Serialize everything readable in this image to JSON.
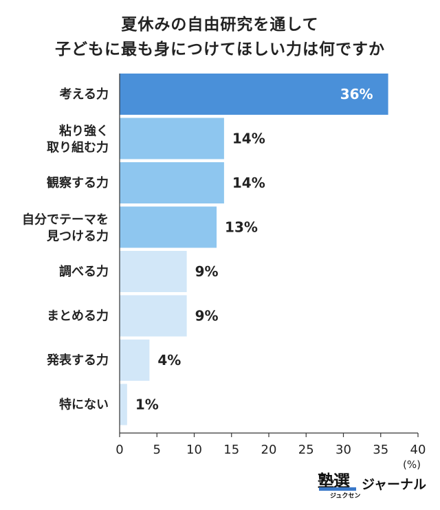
{
  "title_lines": [
    "夏休みの自由研究を通して",
    "子どもに最も身につけてほしい力は何ですか"
  ],
  "unit": "(%)",
  "brand": {
    "main": "塾選",
    "kana": "ジュクセン",
    "sub": "ジャーナル"
  },
  "colors": {
    "top": "#4a90d9",
    "mid": "#8ec6ef",
    "low": "#d2e7f8",
    "axis": "#333333",
    "top_label": "#ffffff"
  },
  "chart_data": {
    "type": "bar",
    "orientation": "horizontal",
    "title": "夏休みの自由研究を通して子どもに最も身につけてほしい力は何ですか",
    "categories": [
      [
        "考える力"
      ],
      [
        "粘り強く",
        "取り組む力"
      ],
      [
        "観察する力"
      ],
      [
        "自分でテーマを",
        "見つける力"
      ],
      [
        "調べる力"
      ],
      [
        "まとめる力"
      ],
      [
        "発表する力"
      ],
      [
        "特にない"
      ]
    ],
    "values": [
      36,
      14,
      14,
      13,
      9,
      9,
      4,
      1
    ],
    "value_labels": [
      "36%",
      "14%",
      "14%",
      "13%",
      "9%",
      "9%",
      "4%",
      "1%"
    ],
    "xlim": [
      0,
      40
    ],
    "xticks": [
      0,
      5,
      10,
      15,
      20,
      25,
      30,
      35,
      40
    ],
    "xlabel": "",
    "ylabel": "",
    "grid": false,
    "legend": "none"
  }
}
